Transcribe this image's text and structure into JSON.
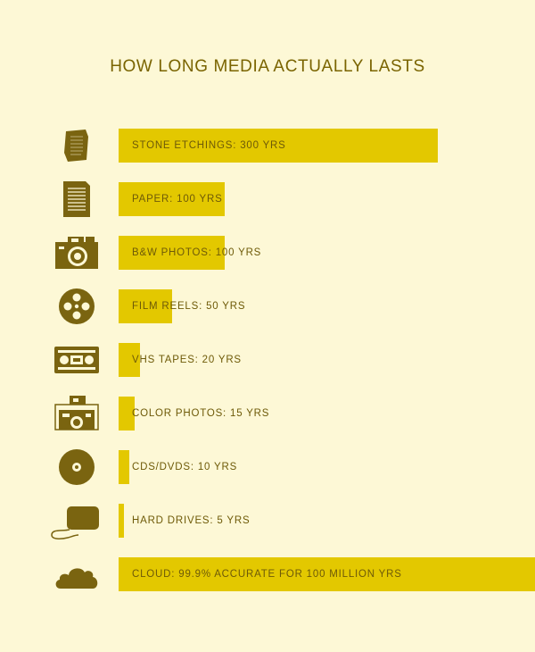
{
  "colors": {
    "background": "#fdf8d6",
    "bar": "#e3c800",
    "text": "#6e5a08",
    "icon": "#7a6410"
  },
  "chart_data": {
    "type": "bar",
    "orientation": "horizontal",
    "title": "HOW LONG MEDIA ACTUALLY LASTS",
    "unit": "YRS",
    "max_displayed_value": 300,
    "rows": [
      {
        "label": "STONE ETCHINGS: 300 YRS",
        "value": 300,
        "icon": "stone-tablet-icon"
      },
      {
        "label": "PAPER: 100 YRS",
        "value": 100,
        "icon": "paper-document-icon"
      },
      {
        "label": "B&W PHOTOS: 100 YRS",
        "value": 100,
        "icon": "camera-icon"
      },
      {
        "label": "FILM REELS: 50 YRS",
        "value": 50,
        "icon": "film-reel-icon"
      },
      {
        "label": "VHS TAPES: 20 YRS",
        "value": 20,
        "icon": "vhs-tape-icon"
      },
      {
        "label": "COLOR PHOTOS: 15 YRS",
        "value": 15,
        "icon": "instant-camera-icon"
      },
      {
        "label": "CDS/DVDS: 10 YRS",
        "value": 10,
        "icon": "disc-icon"
      },
      {
        "label": "HARD DRIVES: 5 YRS",
        "value": 5,
        "icon": "hard-drive-icon"
      },
      {
        "label": "CLOUD: 99.9% ACCURATE FOR 100 MILLION YRS",
        "value": 100000000,
        "icon": "cloud-icon"
      }
    ]
  }
}
